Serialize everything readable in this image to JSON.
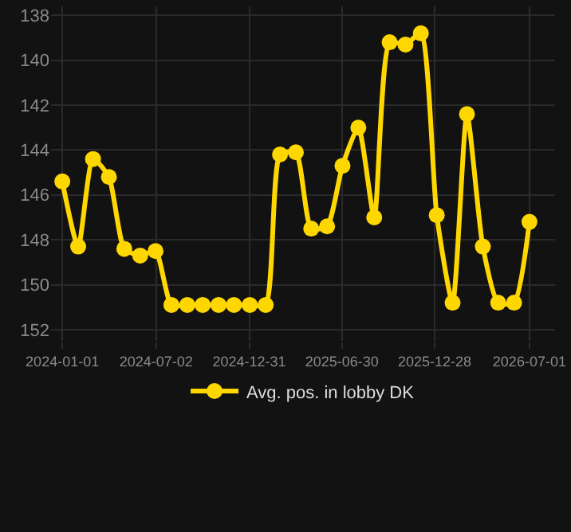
{
  "chart_data": {
    "type": "line",
    "x": [
      "2024-01-01",
      "2024-02-01",
      "2024-03-01",
      "2024-04-01",
      "2024-05-01",
      "2024-06-01",
      "2024-07-01",
      "2024-08-01",
      "2024-09-01",
      "2024-10-01",
      "2024-11-01",
      "2024-12-01",
      "2025-01-01",
      "2025-02-01",
      "2025-03-01",
      "2025-04-01",
      "2025-05-01",
      "2025-06-01",
      "2025-07-01",
      "2025-08-01",
      "2025-09-01",
      "2025-10-01",
      "2025-11-01",
      "2025-12-01",
      "2026-01-01",
      "2026-02-01",
      "2026-03-01",
      "2026-04-01",
      "2026-05-01",
      "2026-06-01",
      "2026-07-01"
    ],
    "series": [
      {
        "name": "Avg. pos. in lobby DK",
        "color": "#ffd700",
        "values": [
          145.4,
          148.3,
          144.4,
          145.2,
          148.4,
          148.7,
          148.5,
          150.9,
          150.9,
          150.9,
          150.9,
          150.9,
          150.9,
          150.9,
          144.2,
          144.1,
          147.5,
          147.4,
          144.7,
          143.0,
          147.0,
          139.2,
          139.3,
          138.8,
          146.9,
          150.8,
          142.4,
          148.3,
          150.8,
          150.8,
          147.2
        ]
      }
    ],
    "xlim": [
      "2023-12-10",
      "2026-08-20"
    ],
    "xticks": [
      "2024-01-01",
      "2024-07-02",
      "2024-12-31",
      "2025-06-30",
      "2025-12-28",
      "2026-07-01"
    ],
    "ylim": [
      152.5,
      137.6
    ],
    "yticks": [
      138,
      140,
      142,
      144,
      146,
      148,
      150,
      152
    ],
    "grid": true,
    "legend": "bottom",
    "marker": "circle",
    "line_style": "solid"
  }
}
